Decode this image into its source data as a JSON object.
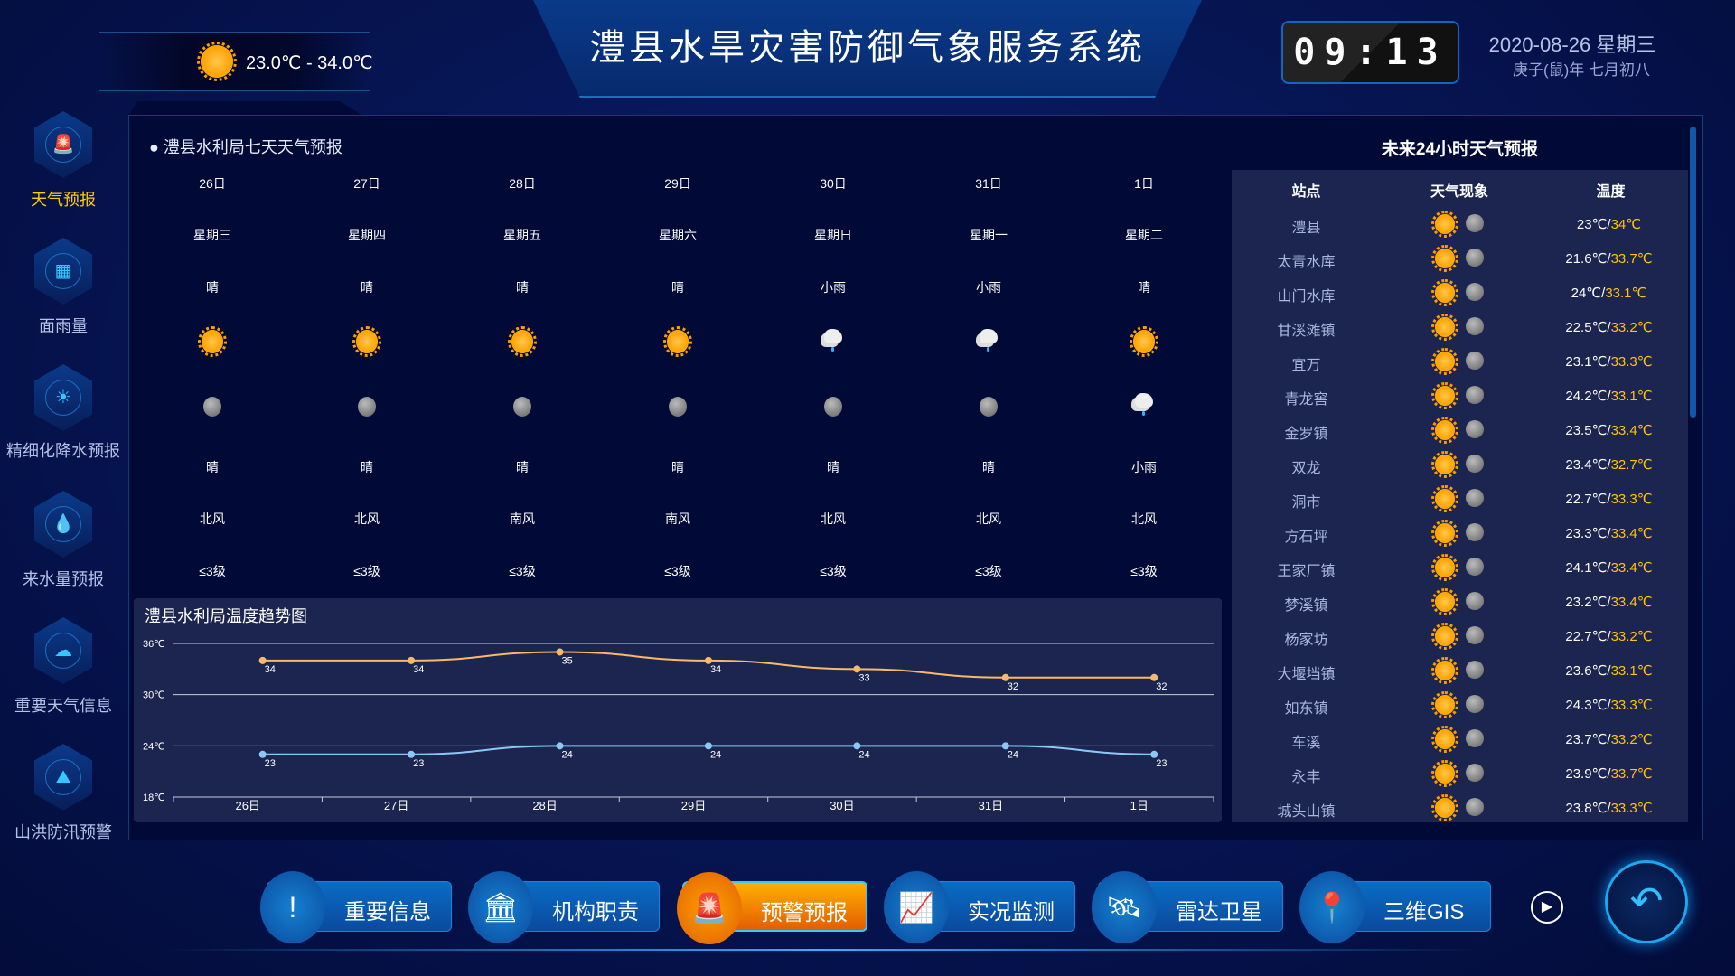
{
  "header": {
    "title": "澧县水旱灾害防御气象服务系统",
    "today_temp": "23.0℃ - 34.0℃",
    "today_icon": "sun-icon",
    "clock": "09:13",
    "date": "2020-08-26   星期三",
    "lunar": "庚子(鼠)年 七月初八"
  },
  "sidebar": {
    "items": [
      {
        "label": "天气预报",
        "active": true,
        "icon": "alarm-light-icon"
      },
      {
        "label": "面雨量",
        "icon": "rain-gauge-icon"
      },
      {
        "label": "精细化降水预报",
        "icon": "sun-wave-icon"
      },
      {
        "label": "来水量预报",
        "icon": "water-cloud-icon"
      },
      {
        "label": "重要天气信息",
        "icon": "cloud-warning-icon"
      },
      {
        "label": "山洪防汛预警",
        "icon": "landslide-icon"
      }
    ],
    "active_color": "#ffcc00"
  },
  "forecast7": {
    "title": "澧县水利局七天天气预报",
    "days": [
      {
        "date": "26日",
        "weekday": "星期三",
        "day_text": "晴",
        "day_icon": "sun",
        "night_icon": "moon",
        "night_text": "晴",
        "wind": "北风",
        "level": "≤3级"
      },
      {
        "date": "27日",
        "weekday": "星期四",
        "day_text": "晴",
        "day_icon": "sun",
        "night_icon": "moon",
        "night_text": "晴",
        "wind": "北风",
        "level": "≤3级"
      },
      {
        "date": "28日",
        "weekday": "星期五",
        "day_text": "晴",
        "day_icon": "sun",
        "night_icon": "moon",
        "night_text": "晴",
        "wind": "南风",
        "level": "≤3级"
      },
      {
        "date": "29日",
        "weekday": "星期六",
        "day_text": "晴",
        "day_icon": "sun",
        "night_icon": "moon",
        "night_text": "晴",
        "wind": "南风",
        "level": "≤3级"
      },
      {
        "date": "30日",
        "weekday": "星期日",
        "day_text": "小雨",
        "day_icon": "rain",
        "night_icon": "moon",
        "night_text": "晴",
        "wind": "北风",
        "level": "≤3级"
      },
      {
        "date": "31日",
        "weekday": "星期一",
        "day_text": "小雨",
        "day_icon": "rain",
        "night_icon": "moon",
        "night_text": "晴",
        "wind": "北风",
        "level": "≤3级"
      },
      {
        "date": "1日",
        "weekday": "星期二",
        "day_text": "晴",
        "day_icon": "sun",
        "night_icon": "rain",
        "night_text": "小雨",
        "wind": "北风",
        "level": "≤3级"
      }
    ]
  },
  "chart_data": {
    "type": "line",
    "title": "澧县水利局温度趋势图",
    "categories": [
      "26日",
      "27日",
      "28日",
      "29日",
      "30日",
      "31日",
      "1日"
    ],
    "series": [
      {
        "values": [
          34,
          34,
          35,
          34,
          33,
          32,
          32
        ],
        "color": "#f7b96a"
      },
      {
        "values": [
          23,
          23,
          24,
          24,
          24,
          24,
          23
        ],
        "color": "#8cc8f5"
      }
    ],
    "ylim": [
      18,
      36
    ],
    "yticks": [
      "18℃",
      "24℃",
      "30℃",
      "36℃"
    ],
    "ytick_values": [
      18,
      24,
      30,
      36
    ],
    "grid": true
  },
  "forecast24": {
    "title": "未来24小时天气预报",
    "headers": [
      "站点",
      "天气现象",
      "温度"
    ],
    "min_color": "#ffffff",
    "max_color": "#ffc20e",
    "rows": [
      {
        "station": "澧县",
        "min": "23℃",
        "max": "34℃"
      },
      {
        "station": "太青水库",
        "min": "21.6℃",
        "max": "33.7℃"
      },
      {
        "station": "山门水库",
        "min": "24℃",
        "max": "33.1℃"
      },
      {
        "station": "甘溪滩镇",
        "min": "22.5℃",
        "max": "33.2℃"
      },
      {
        "station": "宜万",
        "min": "23.1℃",
        "max": "33.3℃"
      },
      {
        "station": "青龙窖",
        "min": "24.2℃",
        "max": "33.1℃"
      },
      {
        "station": "金罗镇",
        "min": "23.5℃",
        "max": "33.4℃"
      },
      {
        "station": "双龙",
        "min": "23.4℃",
        "max": "32.7℃"
      },
      {
        "station": "洞市",
        "min": "22.7℃",
        "max": "33.3℃"
      },
      {
        "station": "方石坪",
        "min": "23.3℃",
        "max": "33.4℃"
      },
      {
        "station": "王家厂镇",
        "min": "24.1℃",
        "max": "33.4℃"
      },
      {
        "station": "梦溪镇",
        "min": "23.2℃",
        "max": "33.4℃"
      },
      {
        "station": "杨家坊",
        "min": "22.7℃",
        "max": "33.2℃"
      },
      {
        "station": "大堰垱镇",
        "min": "23.6℃",
        "max": "33.1℃"
      },
      {
        "station": "如东镇",
        "min": "24.3℃",
        "max": "33.3℃"
      },
      {
        "station": "车溪",
        "min": "23.7℃",
        "max": "33.2℃"
      },
      {
        "station": "永丰",
        "min": "23.9℃",
        "max": "33.7℃"
      },
      {
        "station": "城头山镇",
        "min": "23.8℃",
        "max": "33.3℃"
      }
    ]
  },
  "bottom_nav": {
    "items": [
      {
        "label": "重要信息",
        "icon": "!"
      },
      {
        "label": "机构职责",
        "icon": "🏛"
      },
      {
        "label": "预警预报",
        "icon": "🚨",
        "active": true
      },
      {
        "label": "实况监测",
        "icon": "📈"
      },
      {
        "label": "雷达卫星",
        "icon": "🛰"
      },
      {
        "label": "三维GIS",
        "icon": "📍"
      }
    ],
    "next": "▶",
    "back": "↶"
  }
}
